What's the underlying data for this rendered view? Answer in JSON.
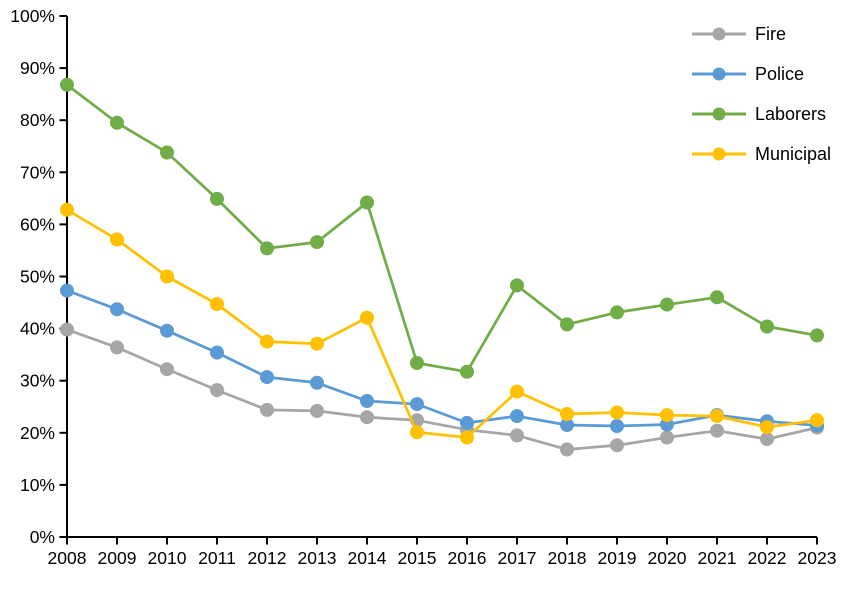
{
  "chart_data": {
    "type": "line",
    "title": "",
    "xlabel": "",
    "ylabel": "",
    "categories": [
      "2008",
      "2009",
      "2010",
      "2011",
      "2012",
      "2013",
      "2014",
      "2015",
      "2016",
      "2017",
      "2018",
      "2019",
      "2020",
      "2021",
      "2022",
      "2023"
    ],
    "series": [
      {
        "name": "Fire",
        "color": "#A6A6A6",
        "values": [
          39.8,
          36.4,
          32.2,
          28.2,
          24.4,
          24.2,
          23.0,
          22.4,
          20.6,
          19.5,
          16.8,
          17.6,
          19.1,
          20.4,
          18.8,
          21.0
        ]
      },
      {
        "name": "Police",
        "color": "#5B9BD5",
        "values": [
          47.3,
          43.7,
          39.6,
          35.4,
          30.7,
          29.6,
          26.1,
          25.5,
          21.9,
          23.2,
          21.5,
          21.3,
          21.6,
          23.4,
          22.2,
          21.4
        ]
      },
      {
        "name": "Laborers",
        "color": "#70AD47",
        "values": [
          86.8,
          79.5,
          73.8,
          64.9,
          55.4,
          56.6,
          64.2,
          33.4,
          31.7,
          48.3,
          40.8,
          43.1,
          44.6,
          46.0,
          40.4,
          38.7
        ]
      },
      {
        "name": "Municipal",
        "color": "#FFC000",
        "values": [
          62.8,
          57.1,
          50.0,
          44.7,
          37.5,
          37.1,
          42.1,
          20.1,
          19.1,
          27.9,
          23.6,
          23.9,
          23.4,
          23.2,
          21.1,
          22.4
        ]
      }
    ],
    "ylim": [
      0,
      100
    ],
    "ytick_step": 10,
    "ytick_suffix": "%",
    "grid": false,
    "legend_position": "top-right-inside",
    "marker": "circle",
    "axis_color": "#000000",
    "background": "#FFFFFF"
  }
}
